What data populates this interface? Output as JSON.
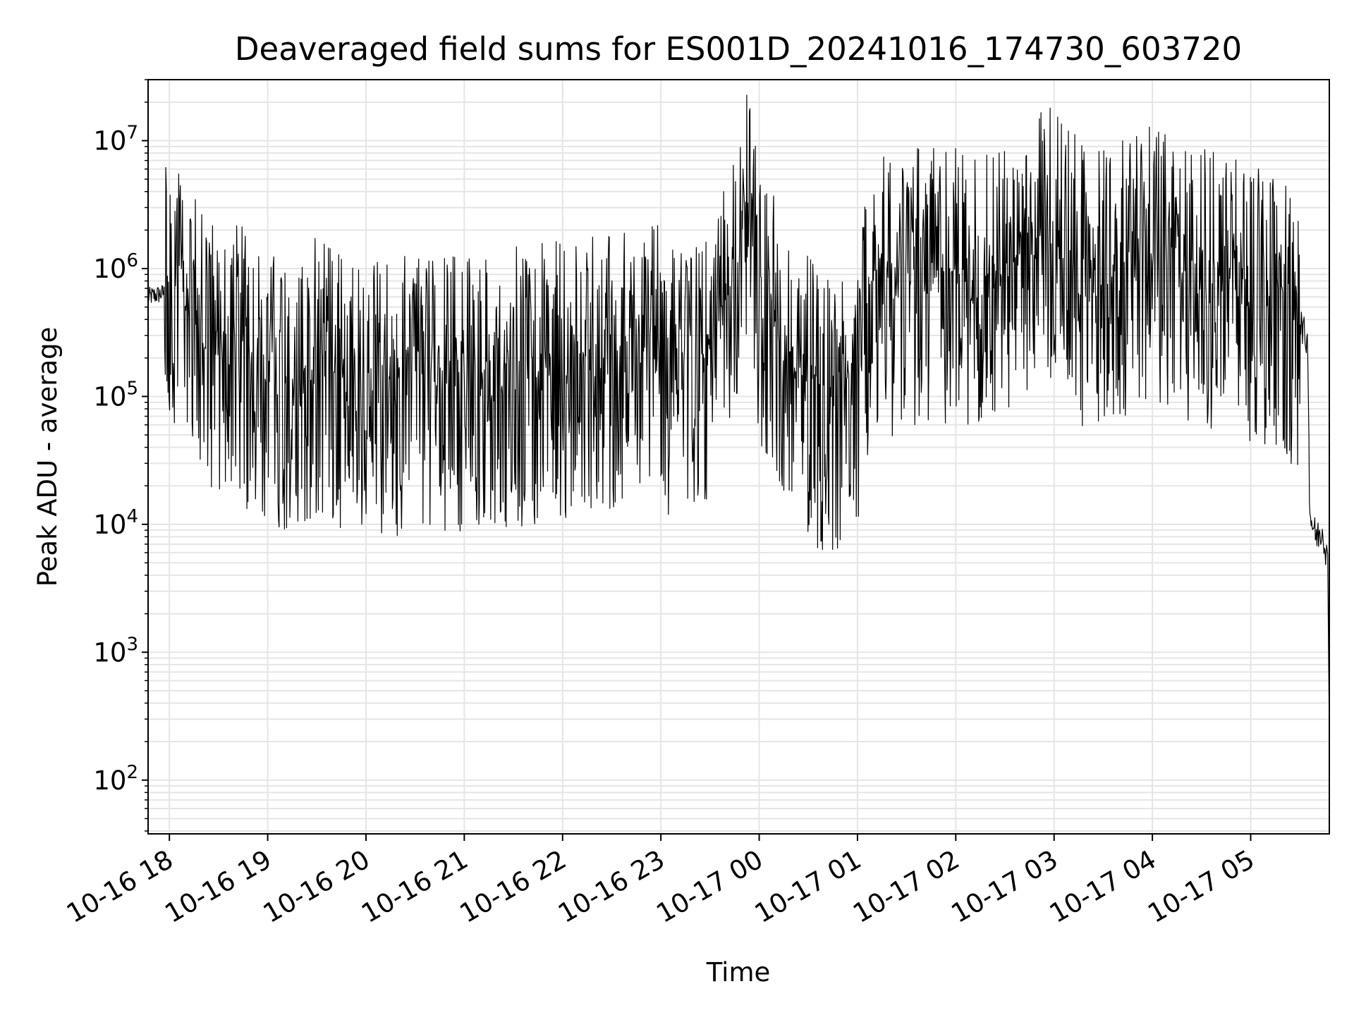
{
  "chart_data": {
    "type": "line",
    "title": "Deaveraged field sums for ES001D_20241016_174730_603720",
    "xlabel": "Time",
    "ylabel": "Peak ADU - average",
    "yscale": "log",
    "ylim": [
      38,
      30000000
    ],
    "xlim": [
      "2024-10-16 17:47",
      "2024-10-17 05:48"
    ],
    "grid": true,
    "line_color": "#000000",
    "grid_color": "#e5e5e5",
    "x_ticks": [
      {
        "time": "2024-10-16 18:00",
        "label": "10-16 18"
      },
      {
        "time": "2024-10-16 19:00",
        "label": "10-16 19"
      },
      {
        "time": "2024-10-16 20:00",
        "label": "10-16 20"
      },
      {
        "time": "2024-10-16 21:00",
        "label": "10-16 21"
      },
      {
        "time": "2024-10-16 22:00",
        "label": "10-16 22"
      },
      {
        "time": "2024-10-16 23:00",
        "label": "10-16 23"
      },
      {
        "time": "2024-10-17 00:00",
        "label": "10-17 00"
      },
      {
        "time": "2024-10-17 01:00",
        "label": "10-17 01"
      },
      {
        "time": "2024-10-17 02:00",
        "label": "10-17 02"
      },
      {
        "time": "2024-10-17 03:00",
        "label": "10-17 03"
      },
      {
        "time": "2024-10-17 04:00",
        "label": "10-17 04"
      },
      {
        "time": "2024-10-17 05:00",
        "label": "10-17 05"
      }
    ],
    "y_ticks": [
      {
        "value": 100,
        "base": "10",
        "exp": "2"
      },
      {
        "value": 1000,
        "base": "10",
        "exp": "3"
      },
      {
        "value": 10000,
        "base": "10",
        "exp": "4"
      },
      {
        "value": 100000,
        "base": "10",
        "exp": "5"
      },
      {
        "value": 1000000,
        "base": "10",
        "exp": "6"
      },
      {
        "value": 10000000,
        "base": "10",
        "exp": "7"
      }
    ],
    "series": [
      {
        "x": [
          "2024-10-16 17:47",
          "2024-10-16 17:52",
          "2024-10-16 17:58",
          "2024-10-16 18:05",
          "2024-10-16 18:10",
          "2024-10-16 18:14",
          "2024-10-16 18:20",
          "2024-10-16 18:30",
          "2024-10-16 18:45",
          "2024-10-16 19:00",
          "2024-10-16 19:20",
          "2024-10-16 19:32",
          "2024-10-16 19:40",
          "2024-10-16 20:00",
          "2024-10-16 20:30",
          "2024-10-16 21:00",
          "2024-10-16 21:30",
          "2024-10-16 22:00",
          "2024-10-16 22:30",
          "2024-10-16 22:50",
          "2024-10-16 23:10",
          "2024-10-16 23:30",
          "2024-10-16 23:40",
          "2024-10-16 23:48",
          "2024-10-16 23:52",
          "2024-10-17 00:00",
          "2024-10-17 00:20",
          "2024-10-17 00:35",
          "2024-10-17 00:50",
          "2024-10-17 01:00",
          "2024-10-17 01:10",
          "2024-10-17 01:20",
          "2024-10-17 01:40",
          "2024-10-17 02:00",
          "2024-10-17 02:20",
          "2024-10-17 02:40",
          "2024-10-17 03:00",
          "2024-10-17 03:20",
          "2024-10-17 03:40",
          "2024-10-17 04:00",
          "2024-10-17 04:20",
          "2024-10-17 04:40",
          "2024-10-17 05:00",
          "2024-10-17 05:20",
          "2024-10-17 05:30",
          "2024-10-17 05:35",
          "2024-10-17 05:36",
          "2024-10-17 05:40",
          "2024-10-17 05:44",
          "2024-10-17 05:47",
          "2024-10-17 05:48"
        ],
        "y": [
          600000,
          620000,
          650000,
          660000,
          600000,
          400000,
          300000,
          250000,
          220000,
          150000,
          120000,
          200000,
          150000,
          110000,
          140000,
          130000,
          150000,
          170000,
          200000,
          300000,
          150000,
          250000,
          500000,
          1500000,
          3000000,
          700000,
          200000,
          100000,
          80000,
          150000,
          1000000,
          700000,
          1000000,
          900000,
          800000,
          1500000,
          2000000,
          800000,
          1000000,
          1500000,
          1000000,
          800000,
          700000,
          500000,
          400000,
          250000,
          12000,
          8000,
          9000,
          5000,
          300
        ]
      }
    ]
  }
}
